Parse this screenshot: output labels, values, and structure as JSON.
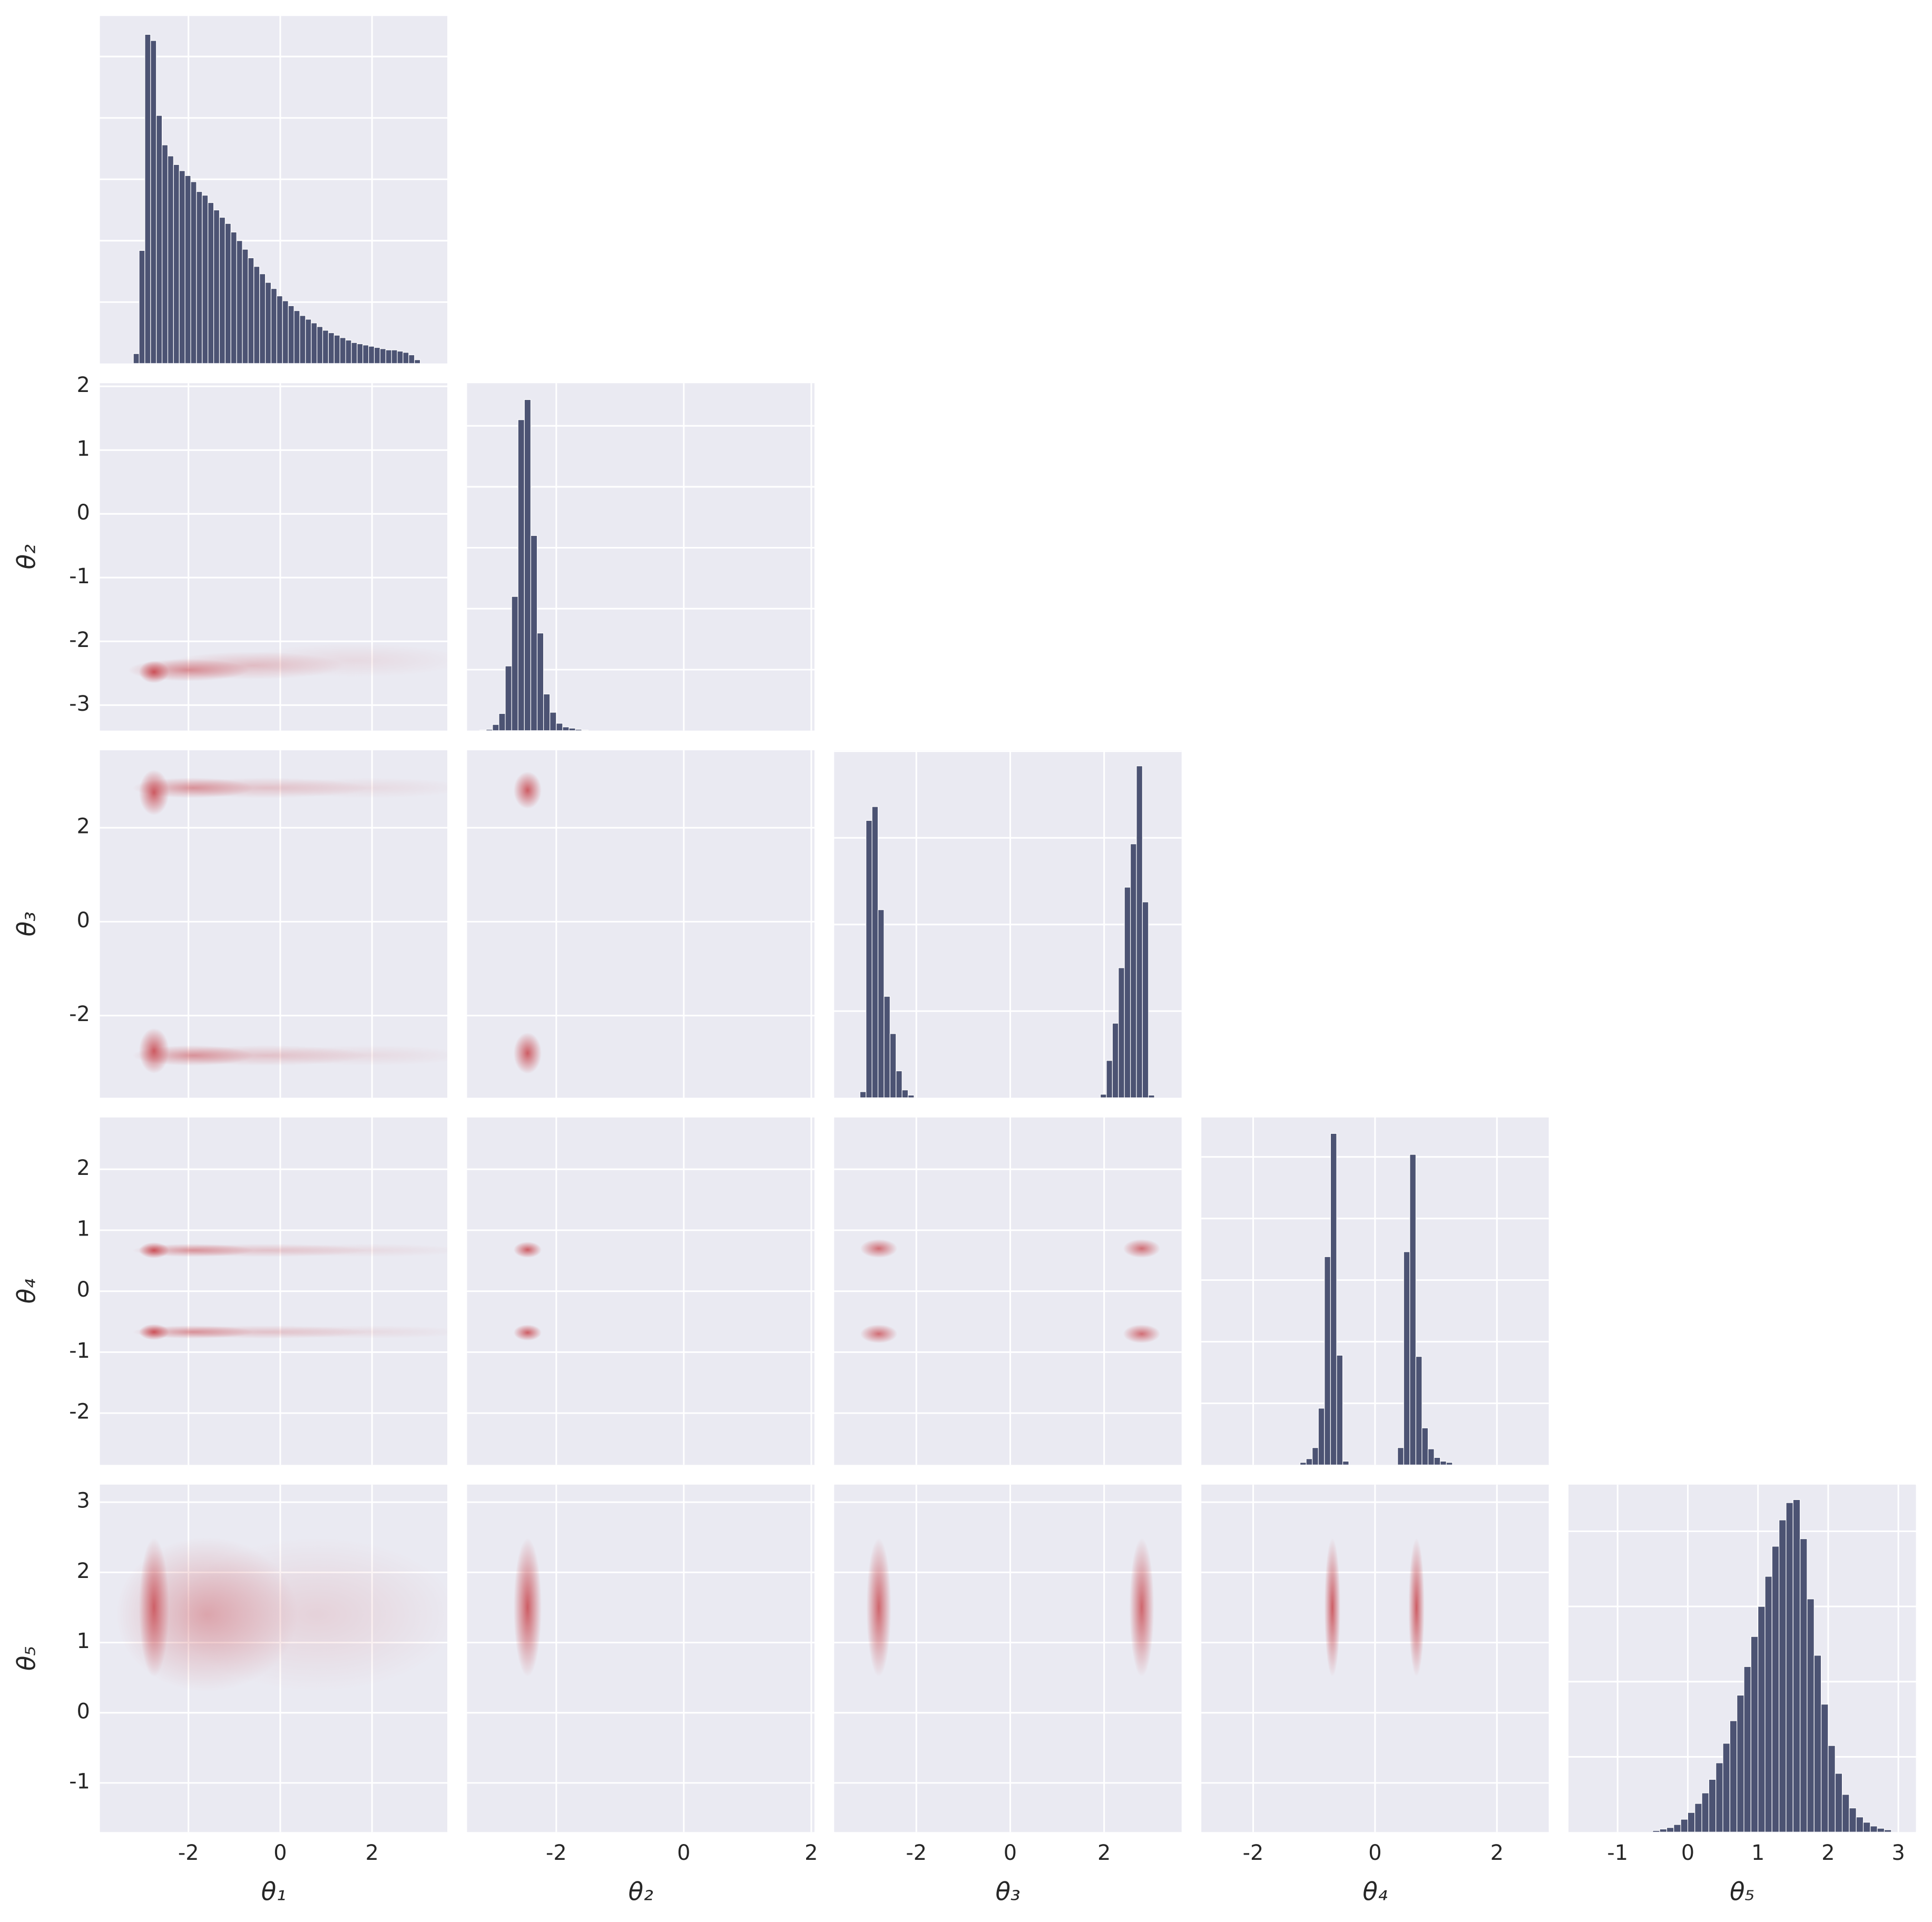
{
  "chart_data": {
    "type": "corner",
    "grid": true,
    "hist_color": "#4c5373",
    "density_color": "#c8454c",
    "background": "#eaeaf2",
    "variables": [
      {
        "label": "θ₁",
        "lim": [
          -3.93,
          3.64
        ],
        "xticks": [
          -2,
          0,
          2
        ],
        "hist": {
          "type": "histogram",
          "ylim": [
            0,
            5.66
          ],
          "yticks": [
            1,
            2,
            3,
            4,
            5
          ],
          "bins": [
            -3.2,
            -3.075,
            -2.95,
            -2.825,
            -2.7,
            -2.575,
            -2.45,
            -2.325,
            -2.2,
            -2.075,
            -1.95,
            -1.825,
            -1.7,
            -1.575,
            -1.45,
            -1.325,
            -1.2,
            -1.075,
            -0.95,
            -0.825,
            -0.7,
            -0.575,
            -0.45,
            -0.325,
            -0.2,
            -0.075,
            0.05,
            0.175,
            0.3,
            0.425,
            0.55,
            0.675,
            0.8,
            0.925,
            1.05,
            1.175,
            1.3,
            1.425,
            1.55,
            1.675,
            1.8,
            1.925,
            2.05,
            2.175,
            2.3,
            2.425,
            2.55,
            2.675,
            2.8,
            2.925,
            3.05
          ],
          "counts": [
            0.16,
            1.84,
            5.36,
            5.26,
            4.04,
            3.56,
            3.38,
            3.24,
            3.14,
            3.06,
            2.96,
            2.8,
            2.74,
            2.62,
            2.5,
            2.38,
            2.28,
            2.14,
            2.0,
            1.86,
            1.72,
            1.58,
            1.46,
            1.32,
            1.22,
            1.1,
            1.02,
            0.94,
            0.86,
            0.78,
            0.72,
            0.66,
            0.6,
            0.54,
            0.5,
            0.46,
            0.42,
            0.38,
            0.34,
            0.32,
            0.3,
            0.28,
            0.26,
            0.24,
            0.22,
            0.22,
            0.2,
            0.18,
            0.14,
            0.06
          ]
        },
        "joint": []
      },
      {
        "label": "θ₂",
        "lim": [
          -3.4,
          2.05
        ],
        "xticks": [
          -2,
          0,
          2
        ],
        "yticks": [
          -3,
          -2,
          -1,
          0,
          1,
          2
        ],
        "hist": {
          "type": "histogram",
          "ylim": [
            0,
            5.7
          ],
          "yticks": [
            1,
            2,
            3,
            4,
            5
          ],
          "bins": [
            -3.2,
            -3.1,
            -3.0,
            -2.9,
            -2.8,
            -2.7,
            -2.6,
            -2.5,
            -2.4,
            -2.3,
            -2.2,
            -2.1,
            -2.0,
            -1.9,
            -1.8,
            -1.7,
            -1.6,
            -1.5
          ],
          "counts": [
            0.01,
            0.02,
            0.1,
            0.28,
            1.06,
            2.2,
            5.1,
            5.43,
            3.2,
            1.6,
            0.6,
            0.3,
            0.12,
            0.06,
            0.04,
            0.02,
            0.01
          ]
        },
        "joint": [
          [
            {
              "x": -2.75,
              "y": -2.48,
              "sx": 0.15,
              "sy": 0.08,
              "w": 0.9
            },
            {
              "x": -2.0,
              "y": -2.45,
              "sx": 0.6,
              "sy": 0.08,
              "w": 0.55
            },
            {
              "x": -0.6,
              "y": -2.38,
              "sx": 0.9,
              "sy": 0.1,
              "w": 0.28
            },
            {
              "x": 1.6,
              "y": -2.3,
              "sx": 1.1,
              "sy": 0.12,
              "w": 0.1
            }
          ]
        ]
      },
      {
        "label": "θ₃",
        "lim": [
          -3.75,
          3.65
        ],
        "xticks": [
          -2,
          0,
          2
        ],
        "yticks": [
          -2,
          0,
          2
        ],
        "hist": {
          "type": "histogram",
          "ylim": [
            0,
            4.01
          ],
          "yticks": [
            1,
            2,
            3,
            4
          ],
          "bins": [
            -3.2,
            -3.072,
            -2.944,
            -2.816,
            -2.688,
            -2.56,
            -2.432,
            -2.304,
            -2.176,
            -2.048,
            -1.92,
            -1.792,
            -1.664,
            -1.536,
            -1.408,
            -1.28,
            -1.152,
            -1.024,
            -0.896,
            -0.768,
            -0.64,
            -0.512,
            -0.384,
            -0.256,
            -0.128,
            0,
            0.128,
            0.256,
            0.384,
            0.512,
            0.64,
            0.768,
            0.896,
            1.024,
            1.152,
            1.28,
            1.408,
            1.536,
            1.664,
            1.792,
            1.92,
            2.048,
            2.176,
            2.304,
            2.432,
            2.56,
            2.688,
            2.816,
            2.944,
            3.072,
            3.2
          ],
          "counts": [
            0.07,
            3.2,
            3.36,
            2.17,
            1.17,
            0.74,
            0.31,
            0.09,
            0.03,
            0,
            0,
            0,
            0,
            0,
            0,
            0,
            0,
            0,
            0,
            0,
            0,
            0,
            0,
            0,
            0,
            0,
            0,
            0,
            0,
            0,
            0,
            0,
            0,
            0,
            0,
            0,
            0,
            0,
            0,
            0,
            0.04,
            0.43,
            0.86,
            1.5,
            2.43,
            2.93,
            3.83,
            2.26,
            0.03,
            0
          ]
        },
        "joint": [
          [
            {
              "x": -2.75,
              "y": 2.75,
              "sx": 0.15,
              "sy": 0.22,
              "w": 0.85
            },
            {
              "x": -1.9,
              "y": 2.85,
              "sx": 0.6,
              "sy": 0.1,
              "w": 0.5
            },
            {
              "x": -0.3,
              "y": 2.85,
              "sx": 1.0,
              "sy": 0.1,
              "w": 0.25
            },
            {
              "x": 1.9,
              "y": 2.85,
              "sx": 1.0,
              "sy": 0.1,
              "w": 0.1
            },
            {
              "x": -2.75,
              "y": -2.75,
              "sx": 0.15,
              "sy": 0.22,
              "w": 0.85
            },
            {
              "x": -1.9,
              "y": -2.85,
              "sx": 0.6,
              "sy": 0.1,
              "w": 0.5
            },
            {
              "x": -0.3,
              "y": -2.85,
              "sx": 1.0,
              "sy": 0.1,
              "w": 0.25
            },
            {
              "x": 1.9,
              "y": -2.85,
              "sx": 1.0,
              "sy": 0.1,
              "w": 0.1
            }
          ],
          [
            {
              "x": -2.45,
              "y": 2.8,
              "sx": 0.1,
              "sy": 0.18,
              "w": 0.85
            },
            {
              "x": -2.45,
              "y": -2.8,
              "sx": 0.1,
              "sy": 0.2,
              "w": 0.85
            }
          ]
        ]
      },
      {
        "label": "θ₄",
        "lim": [
          -2.85,
          2.85
        ],
        "xticks": [
          -2,
          0,
          2
        ],
        "yticks": [
          -2,
          -1,
          0,
          1,
          2
        ],
        "hist": {
          "type": "histogram",
          "ylim": [
            0,
            5.64
          ],
          "yticks": [
            1,
            2,
            3,
            4,
            5
          ],
          "bins": [
            -1.43,
            -1.33,
            -1.23,
            -1.13,
            -1.03,
            -0.93,
            -0.83,
            -0.73,
            -0.63,
            -0.53,
            -0.43,
            -0.33,
            -0.23,
            -0.13,
            -0.03,
            0.07,
            0.17,
            0.27,
            0.37,
            0.47,
            0.57,
            0.67,
            0.77,
            0.87,
            0.97,
            1.07,
            1.17,
            1.27,
            1.37
          ],
          "counts": [
            0,
            0,
            0.04,
            0.1,
            0.28,
            0.92,
            3.38,
            5.38,
            1.78,
            0.06,
            0,
            0,
            0,
            0,
            0,
            0,
            0,
            0,
            0.28,
            3.46,
            5.04,
            1.76,
            0.6,
            0.26,
            0.12,
            0.06,
            0.04,
            0
          ]
        },
        "joint": [
          [
            {
              "x": -2.75,
              "y": 0.67,
              "sx": 0.15,
              "sy": 0.06,
              "w": 0.9
            },
            {
              "x": -1.9,
              "y": 0.67,
              "sx": 0.6,
              "sy": 0.05,
              "w": 0.5
            },
            {
              "x": -0.3,
              "y": 0.67,
              "sx": 1.0,
              "sy": 0.05,
              "w": 0.25
            },
            {
              "x": 1.9,
              "y": 0.67,
              "sx": 1.0,
              "sy": 0.05,
              "w": 0.1
            },
            {
              "x": -2.75,
              "y": -0.67,
              "sx": 0.15,
              "sy": 0.06,
              "w": 0.9
            },
            {
              "x": -1.9,
              "y": -0.67,
              "sx": 0.6,
              "sy": 0.05,
              "w": 0.5
            },
            {
              "x": -0.3,
              "y": -0.67,
              "sx": 1.0,
              "sy": 0.05,
              "w": 0.25
            },
            {
              "x": 1.9,
              "y": -0.67,
              "sx": 1.0,
              "sy": 0.05,
              "w": 0.1
            }
          ],
          [
            {
              "x": -2.45,
              "y": 0.68,
              "sx": 0.1,
              "sy": 0.06,
              "w": 0.85
            },
            {
              "x": -2.45,
              "y": -0.68,
              "sx": 0.1,
              "sy": 0.06,
              "w": 0.85
            }
          ],
          [
            {
              "x": -2.8,
              "y": 0.7,
              "sx": 0.18,
              "sy": 0.07,
              "w": 0.75
            },
            {
              "x": 2.8,
              "y": 0.7,
              "sx": 0.18,
              "sy": 0.07,
              "w": 0.75
            },
            {
              "x": -2.8,
              "y": -0.7,
              "sx": 0.18,
              "sy": 0.07,
              "w": 0.75
            },
            {
              "x": 2.8,
              "y": -0.7,
              "sx": 0.18,
              "sy": 0.07,
              "w": 0.75
            }
          ]
        ]
      },
      {
        "label": "θ₅",
        "lim": [
          -1.7,
          3.25
        ],
        "xticks": [
          -1,
          0,
          1,
          2,
          3
        ],
        "yticks": [
          -1,
          0,
          1,
          2,
          3
        ],
        "hist": {
          "type": "histogram",
          "ylim": [
            0,
            4.62
          ],
          "yticks": [
            1,
            2,
            3,
            4
          ],
          "bins": [
            -0.5,
            -0.4,
            -0.3,
            -0.2,
            -0.1,
            0,
            0.1,
            0.2,
            0.3,
            0.4,
            0.5,
            0.6,
            0.7,
            0.8,
            0.9,
            1.0,
            1.1,
            1.2,
            1.3,
            1.4,
            1.5,
            1.6,
            1.7,
            1.8,
            1.9,
            2.0,
            2.1,
            2.2,
            2.3,
            2.4,
            2.5,
            2.6,
            2.7,
            2.8,
            2.9
          ],
          "counts": [
            0.02,
            0.04,
            0.06,
            0.1,
            0.17,
            0.26,
            0.38,
            0.52,
            0.7,
            0.92,
            1.18,
            1.48,
            1.82,
            2.2,
            2.6,
            3.0,
            3.4,
            3.8,
            4.15,
            4.38,
            4.42,
            3.9,
            3.1,
            2.35,
            1.7,
            1.15,
            0.78,
            0.5,
            0.32,
            0.2,
            0.13,
            0.08,
            0.05,
            0.03
          ]
        },
        "joint": [
          [
            {
              "x": -2.75,
              "y": 1.5,
              "sx": 0.15,
              "sy": 0.45,
              "w": 0.8
            },
            {
              "x": -1.6,
              "y": 1.4,
              "sx": 0.9,
              "sy": 0.5,
              "w": 0.4
            },
            {
              "x": 0.8,
              "y": 1.4,
              "sx": 1.4,
              "sy": 0.5,
              "w": 0.15
            }
          ],
          [
            {
              "x": -2.45,
              "y": 1.5,
              "sx": 0.1,
              "sy": 0.45,
              "w": 0.85
            }
          ],
          [
            {
              "x": -2.8,
              "y": 1.5,
              "sx": 0.12,
              "sy": 0.45,
              "w": 0.8
            },
            {
              "x": 2.8,
              "y": 1.5,
              "sx": 0.12,
              "sy": 0.45,
              "w": 0.8
            }
          ],
          [
            {
              "x": -0.7,
              "y": 1.5,
              "sx": 0.06,
              "sy": 0.45,
              "w": 0.85
            },
            {
              "x": 0.68,
              "y": 1.5,
              "sx": 0.06,
              "sy": 0.45,
              "w": 0.85
            }
          ]
        ]
      }
    ]
  }
}
